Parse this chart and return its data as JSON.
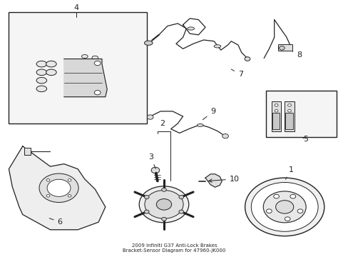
{
  "title": "2009 Infiniti G37 Anti-Lock Brakes\nBracket-Sensor Diagram for 47960-JK000",
  "background_color": "#ffffff",
  "fig_width": 4.89,
  "fig_height": 3.6,
  "dpi": 100
}
